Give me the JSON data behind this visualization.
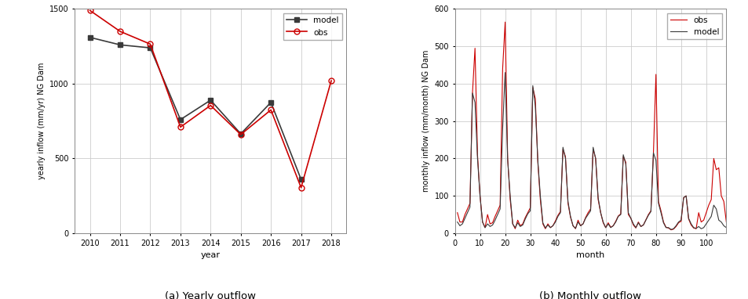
{
  "yearly": {
    "years": [
      2010,
      2011,
      2012,
      2013,
      2014,
      2015,
      2016,
      2017,
      2018
    ],
    "model": [
      1310,
      1260,
      1240,
      760,
      890,
      665,
      875,
      360,
      null
    ],
    "obs": [
      1490,
      1350,
      1265,
      710,
      855,
      660,
      825,
      305,
      1020
    ],
    "ylabel": "yearly inflow (mm/yr) NG Dam",
    "xlabel": "year",
    "caption": "(a) Yearly outflow",
    "ylim": [
      0,
      1500
    ],
    "yticks": [
      0,
      500,
      1000,
      1500
    ],
    "xlim": [
      2009.5,
      2018.5
    ],
    "xticks": [
      2010,
      2011,
      2012,
      2013,
      2014,
      2015,
      2016,
      2017,
      2018
    ]
  },
  "monthly": {
    "ylabel": "monthly inflow (mm/month) NG Dam",
    "xlabel": "month",
    "caption": "(b) Monthly outflow",
    "ylim": [
      0,
      600
    ],
    "yticks": [
      0,
      100,
      200,
      300,
      400,
      500,
      600
    ],
    "xlim": [
      0,
      108
    ],
    "xticks": [
      0,
      10,
      20,
      30,
      40,
      50,
      60,
      70,
      80,
      90,
      100
    ]
  },
  "model_color": "#3a3a3a",
  "obs_color": "#cc0000",
  "grid_color": "#cccccc",
  "bg_color": "#ffffff",
  "legend_model": "model",
  "legend_obs": "obs",
  "fig_width": 9.54,
  "fig_height": 3.82
}
